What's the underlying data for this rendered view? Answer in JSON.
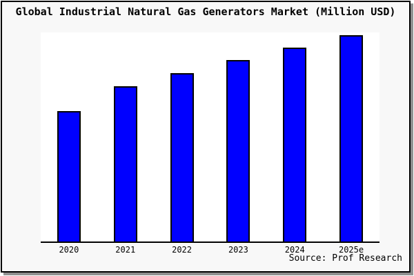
{
  "colors": {
    "outer_background": "#ffffff",
    "frame_background": "#f8f8f8",
    "frame_border": "#000000",
    "frame_shadow": "#909090",
    "plot_background": "#ffffff",
    "axis_line": "#000000",
    "bar_fill": "#0000ff",
    "bar_border": "#000000",
    "text": "#000000"
  },
  "chart_data": {
    "type": "bar",
    "title": "Global Industrial Natural Gas Generators Market (Million USD)",
    "categories": [
      "2020",
      "2021",
      "2022",
      "2023",
      "2024",
      "2025e"
    ],
    "values": [
      62.4,
      74.3,
      80.5,
      86.8,
      92.7,
      98.7
    ],
    "value_note": "No y-axis or data labels shown; values are relative bar heights in % of plot height",
    "xlabel": "",
    "ylabel": "",
    "ylim": [
      0,
      100
    ],
    "grid": false,
    "legend": false,
    "source": "Source: Prof Research"
  }
}
